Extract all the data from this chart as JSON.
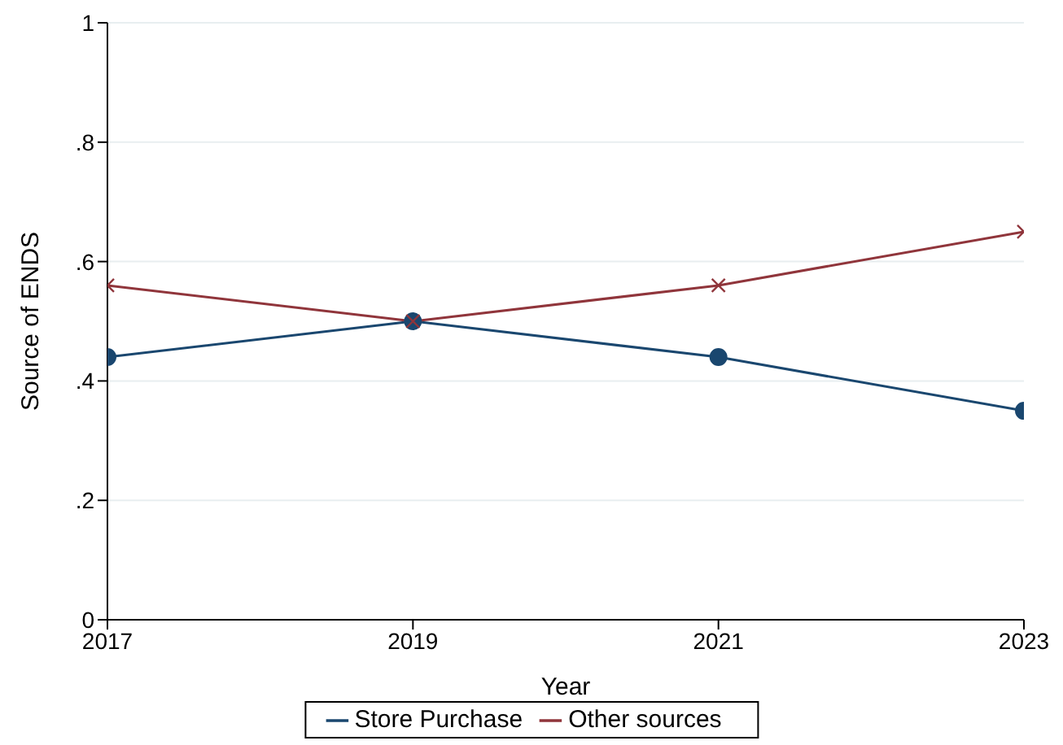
{
  "chart_data": {
    "type": "line",
    "xlabel": "Year",
    "ylabel": "Source of ENDS",
    "x": [
      2017,
      2019,
      2021,
      2023
    ],
    "series": [
      {
        "name": "Store Purchase",
        "color": "#1a476f",
        "marker": "circle",
        "values": [
          0.44,
          0.5,
          0.44,
          0.35
        ]
      },
      {
        "name": "Other sources",
        "color": "#90353b",
        "marker": "cross",
        "values": [
          0.56,
          0.5,
          0.56,
          0.65
        ]
      }
    ],
    "xlim": [
      2017,
      2023
    ],
    "xticks": [
      2017,
      2019,
      2021,
      2023
    ],
    "ylim": [
      0,
      1
    ],
    "yticks": [
      {
        "value": 0,
        "label": "0"
      },
      {
        "value": 0.2,
        "label": ".2"
      },
      {
        "value": 0.4,
        "label": ".4"
      },
      {
        "value": 0.6,
        "label": ".6"
      },
      {
        "value": 0.8,
        "label": ".8"
      },
      {
        "value": 1,
        "label": "1"
      }
    ],
    "grid": "y",
    "legend": "bottom"
  }
}
